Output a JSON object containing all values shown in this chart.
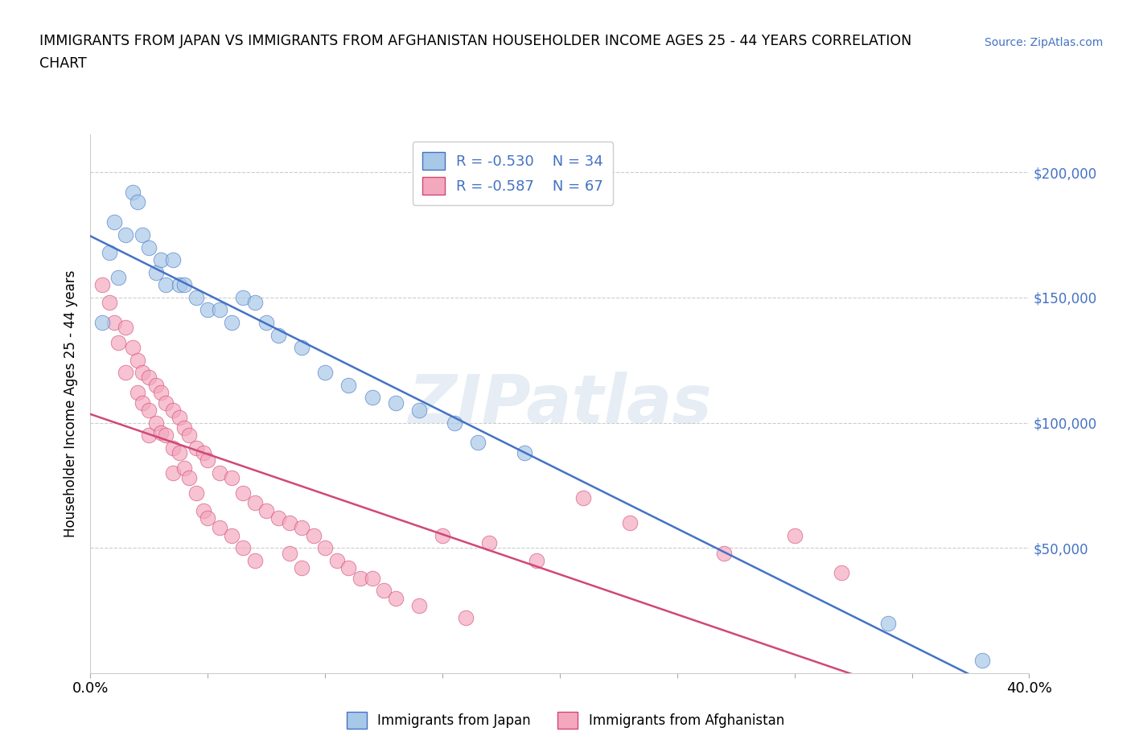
{
  "title_line1": "IMMIGRANTS FROM JAPAN VS IMMIGRANTS FROM AFGHANISTAN HOUSEHOLDER INCOME AGES 25 - 44 YEARS CORRELATION",
  "title_line2": "CHART",
  "source": "Source: ZipAtlas.com",
  "ylabel": "Householder Income Ages 25 - 44 years",
  "xlim": [
    0.0,
    0.4
  ],
  "ylim": [
    0,
    215000
  ],
  "yticks": [
    0,
    50000,
    100000,
    150000,
    200000
  ],
  "ytick_labels": [
    "",
    "$50,000",
    "$100,000",
    "$150,000",
    "$200,000"
  ],
  "xticks": [
    0.0,
    0.05,
    0.1,
    0.15,
    0.2,
    0.25,
    0.3,
    0.35,
    0.4
  ],
  "color_japan": "#a8c8e8",
  "color_afghanistan": "#f4a8be",
  "line_color_japan": "#4472c4",
  "line_color_afghanistan": "#d04878",
  "R_japan": -0.53,
  "N_japan": 34,
  "R_afghanistan": -0.587,
  "N_afghanistan": 67,
  "watermark": "ZIPatlas",
  "japan_x": [
    0.005,
    0.008,
    0.01,
    0.012,
    0.015,
    0.018,
    0.02,
    0.022,
    0.025,
    0.028,
    0.03,
    0.032,
    0.035,
    0.038,
    0.04,
    0.045,
    0.05,
    0.055,
    0.06,
    0.065,
    0.07,
    0.075,
    0.08,
    0.09,
    0.1,
    0.11,
    0.12,
    0.13,
    0.14,
    0.155,
    0.165,
    0.185,
    0.34,
    0.38
  ],
  "japan_y": [
    140000,
    168000,
    180000,
    158000,
    175000,
    192000,
    188000,
    175000,
    170000,
    160000,
    165000,
    155000,
    165000,
    155000,
    155000,
    150000,
    145000,
    145000,
    140000,
    150000,
    148000,
    140000,
    135000,
    130000,
    120000,
    115000,
    110000,
    108000,
    105000,
    100000,
    92000,
    88000,
    20000,
    5000
  ],
  "afghanistan_x": [
    0.005,
    0.008,
    0.01,
    0.012,
    0.015,
    0.015,
    0.018,
    0.02,
    0.02,
    0.022,
    0.022,
    0.025,
    0.025,
    0.025,
    0.028,
    0.028,
    0.03,
    0.03,
    0.032,
    0.032,
    0.035,
    0.035,
    0.035,
    0.038,
    0.038,
    0.04,
    0.04,
    0.042,
    0.042,
    0.045,
    0.045,
    0.048,
    0.048,
    0.05,
    0.05,
    0.055,
    0.055,
    0.06,
    0.06,
    0.065,
    0.065,
    0.07,
    0.07,
    0.075,
    0.08,
    0.085,
    0.085,
    0.09,
    0.09,
    0.095,
    0.1,
    0.105,
    0.11,
    0.115,
    0.12,
    0.125,
    0.13,
    0.14,
    0.15,
    0.16,
    0.17,
    0.19,
    0.21,
    0.23,
    0.27,
    0.3,
    0.32
  ],
  "afghanistan_y": [
    155000,
    148000,
    140000,
    132000,
    138000,
    120000,
    130000,
    125000,
    112000,
    120000,
    108000,
    118000,
    105000,
    95000,
    115000,
    100000,
    112000,
    96000,
    108000,
    95000,
    105000,
    90000,
    80000,
    102000,
    88000,
    98000,
    82000,
    95000,
    78000,
    90000,
    72000,
    88000,
    65000,
    85000,
    62000,
    80000,
    58000,
    78000,
    55000,
    72000,
    50000,
    68000,
    45000,
    65000,
    62000,
    60000,
    48000,
    58000,
    42000,
    55000,
    50000,
    45000,
    42000,
    38000,
    38000,
    33000,
    30000,
    27000,
    55000,
    22000,
    52000,
    45000,
    70000,
    60000,
    48000,
    55000,
    40000
  ]
}
